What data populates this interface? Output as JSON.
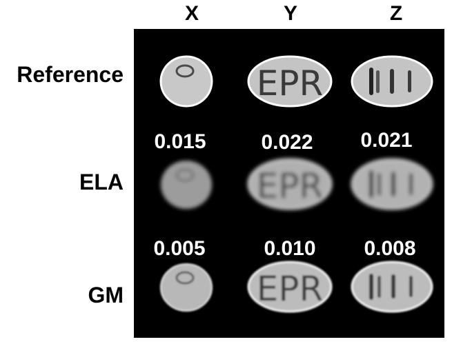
{
  "columns": [
    "X",
    "Y",
    "Z"
  ],
  "rows": [
    {
      "label": "Reference",
      "scores": [
        "",
        "",
        ""
      ]
    },
    {
      "label": "ELA",
      "scores": [
        "0.015",
        "0.022",
        "0.021"
      ]
    },
    {
      "label": "GM",
      "scores": [
        "0.005",
        "0.010",
        "0.008"
      ]
    }
  ],
  "phantom_text": "EPR",
  "colors": {
    "background": "#ffffff",
    "panel": "#000000",
    "score_text": "#ffffff",
    "phantom_fill": "#c4c4c4",
    "phantom_rim": "#ffffff",
    "feature": "#3a3a3a"
  }
}
